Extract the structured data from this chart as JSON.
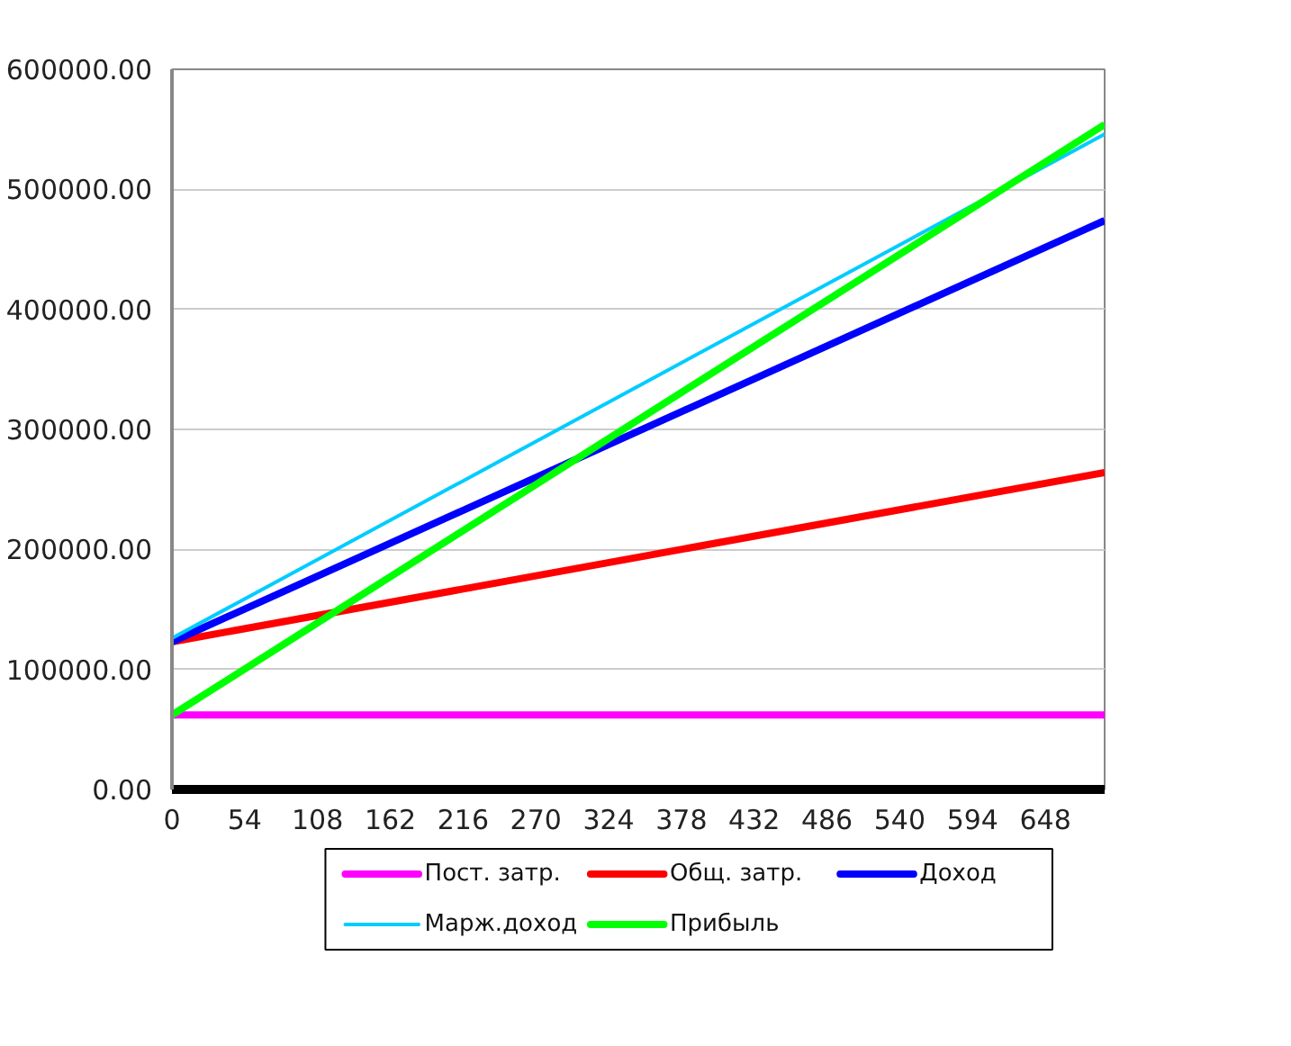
{
  "chart_data": {
    "type": "line",
    "x": [
      0,
      692
    ],
    "xlim": [
      0,
      692
    ],
    "xticks": [
      0,
      54,
      108,
      162,
      216,
      270,
      324,
      378,
      432,
      486,
      540,
      594,
      648
    ],
    "ylim": [
      0,
      600000
    ],
    "yticks": [
      {
        "value": 0,
        "label": "0.00"
      },
      {
        "value": 100000,
        "label": "100000.00"
      },
      {
        "value": 200000,
        "label": "200000.00"
      },
      {
        "value": 300000,
        "label": "300000.00"
      },
      {
        "value": 400000,
        "label": "400000.00"
      },
      {
        "value": 500000,
        "label": "500000.00"
      },
      {
        "value": 600000,
        "label": "600000.00"
      }
    ],
    "grid": "y",
    "legend": "bottom",
    "series": [
      {
        "name": "Пост. затр.",
        "color": "#ff00ff",
        "values": [
          62000,
          62000
        ]
      },
      {
        "name": "Общ. затр.",
        "color": "#ff0000",
        "values": [
          123000,
          264000
        ]
      },
      {
        "name": "Доход",
        "color": "#0000ff",
        "values": [
          123000,
          474000
        ]
      },
      {
        "name": "Марж.доход",
        "color": "#00ccff",
        "values": [
          126000,
          546000
        ]
      },
      {
        "name": "Прибыль",
        "color": "#00ff00",
        "values": [
          62000,
          554000
        ]
      }
    ]
  }
}
